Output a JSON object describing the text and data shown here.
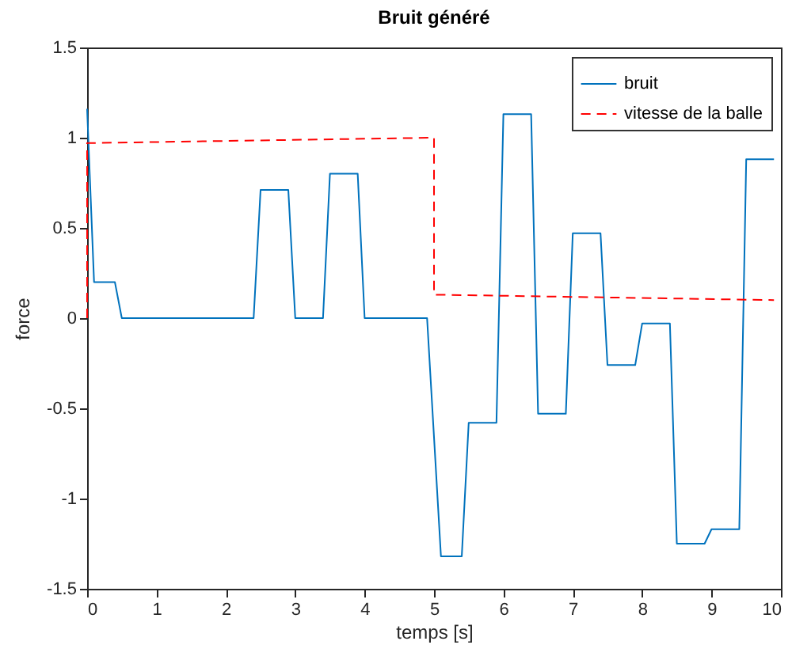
{
  "chart_data": {
    "type": "line",
    "title": "Bruit généré",
    "xlabel": "temps [s]",
    "ylabel": "force",
    "xlim": [
      0,
      10
    ],
    "xticks": [
      0,
      1,
      2,
      3,
      4,
      5,
      6,
      7,
      8,
      9,
      10
    ],
    "ylim": [
      -1.5,
      1.5
    ],
    "yticks": [
      -1.5,
      -1,
      -0.5,
      0,
      0.5,
      1,
      1.5
    ],
    "grid": false,
    "legend": "top right",
    "marker": "none",
    "series": [
      {
        "name": "bruit",
        "color": "#0072bd",
        "line_style": "solid",
        "x": [
          0,
          0.1,
          0.4,
          0.5,
          2.4,
          2.5,
          2.9,
          3.0,
          3.4,
          3.5,
          3.9,
          4.0,
          4.9,
          5.1,
          5.4,
          5.5,
          5.9,
          6.0,
          6.4,
          6.5,
          6.9,
          7.0,
          7.4,
          7.5,
          7.9,
          8.0,
          8.4,
          8.5,
          8.9,
          9.0,
          9.4,
          9.5,
          9.9
        ],
        "values": [
          1.16,
          0.2,
          0.2,
          0,
          0,
          0.71,
          0.71,
          0,
          0,
          0.8,
          0.8,
          0,
          0,
          -1.32,
          -1.32,
          -0.58,
          -0.58,
          1.13,
          1.13,
          -0.53,
          -0.53,
          0.47,
          0.47,
          -0.26,
          -0.26,
          -0.03,
          -0.03,
          -1.25,
          -1.25,
          -1.17,
          -1.17,
          0.88,
          0.88
        ]
      },
      {
        "name": "vitesse de la balle",
        "color": "#ff0000",
        "line_style": "dashed",
        "x": [
          0,
          0,
          5,
          5,
          9.9
        ],
        "values": [
          0,
          0.97,
          1.0,
          0.13,
          0.1
        ]
      }
    ]
  }
}
